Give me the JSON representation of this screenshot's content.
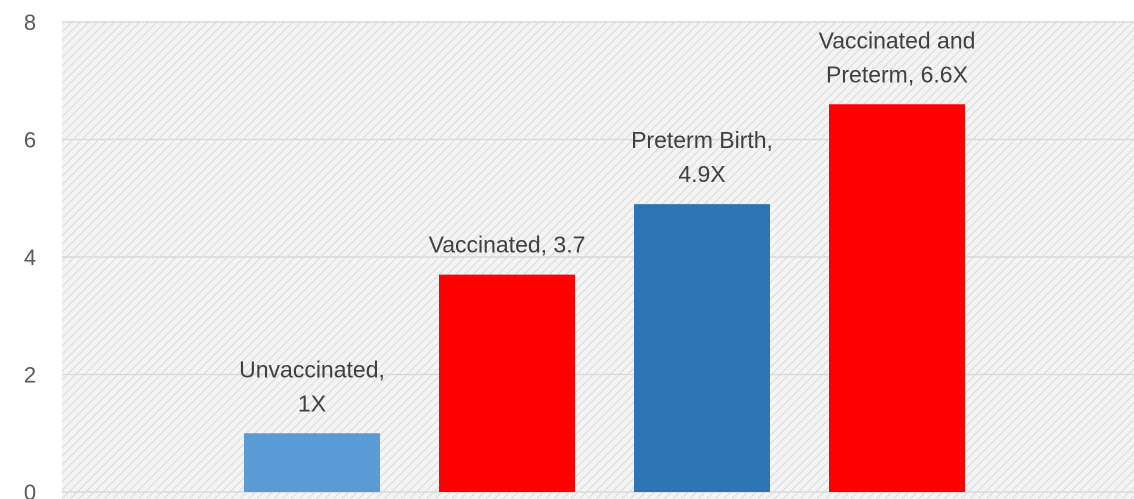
{
  "chart_data": {
    "type": "bar",
    "title": "",
    "xlabel": "",
    "ylabel": "",
    "categories": [
      "Unvaccinated",
      "Vaccinated",
      "Preterm Birth",
      "Vaccinated and Preterm"
    ],
    "values": [
      1,
      3.7,
      4.9,
      6.6
    ],
    "bar_colors": [
      "#5b9bd5",
      "#ff0000",
      "#2e75b6",
      "#ff0000"
    ],
    "data_labels": [
      [
        "Unvaccinated,",
        "1X"
      ],
      [
        "Vaccinated, 3.7"
      ],
      [
        "Preterm  Birth,",
        "4.9X"
      ],
      [
        "Vaccinated and",
        "Preterm,  6.6X"
      ]
    ],
    "ylim": [
      0,
      8
    ],
    "yticks": [
      "0",
      "2",
      "4",
      "6",
      "8"
    ],
    "grid": true,
    "legend": "none",
    "plot_background": "hatched light gray"
  }
}
